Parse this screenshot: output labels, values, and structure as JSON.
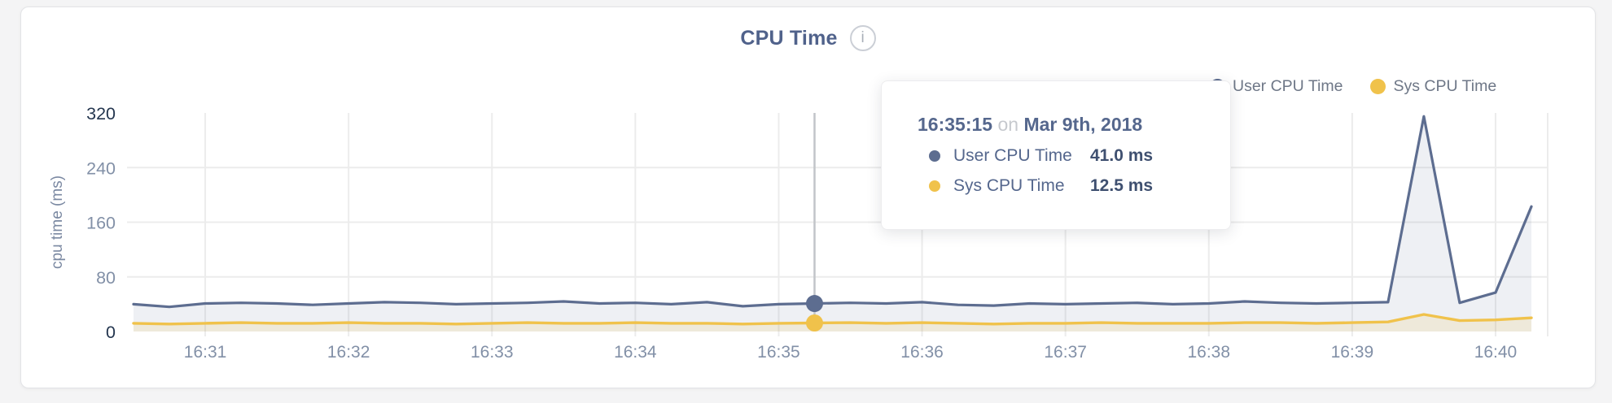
{
  "header": {
    "title": "CPU Time",
    "info_glyph": "i"
  },
  "legend": {
    "items": [
      {
        "label": "User CPU Time",
        "color": "#5d6d90"
      },
      {
        "label": "Sys CPU Time",
        "color": "#f0c24b"
      }
    ]
  },
  "tooltip": {
    "time": "16:35:15",
    "connector": "on",
    "date": "Mar 9th, 2018",
    "rows": [
      {
        "label": "User CPU Time",
        "value": "41.0 ms",
        "color": "#5d6d90"
      },
      {
        "label": "Sys CPU Time",
        "value": "12.5 ms",
        "color": "#f0c24b"
      }
    ]
  },
  "chart_data": {
    "type": "line",
    "title": "CPU Time",
    "xlabel": "",
    "ylabel": "cpu time (ms)",
    "ylim": [
      0,
      320
    ],
    "yticks": [
      0,
      80,
      160,
      240,
      320
    ],
    "xticks": [
      "16:31",
      "16:32",
      "16:33",
      "16:34",
      "16:35",
      "16:36",
      "16:37",
      "16:38",
      "16:39",
      "16:40"
    ],
    "grid": true,
    "legend_position": "top-right",
    "x": [
      "16:30:30",
      "16:30:45",
      "16:31:00",
      "16:31:15",
      "16:31:30",
      "16:31:45",
      "16:32:00",
      "16:32:15",
      "16:32:30",
      "16:32:45",
      "16:33:00",
      "16:33:15",
      "16:33:30",
      "16:33:45",
      "16:34:00",
      "16:34:15",
      "16:34:30",
      "16:34:45",
      "16:35:00",
      "16:35:15",
      "16:35:30",
      "16:35:45",
      "16:36:00",
      "16:36:15",
      "16:36:30",
      "16:36:45",
      "16:37:00",
      "16:37:15",
      "16:37:30",
      "16:37:45",
      "16:38:00",
      "16:38:15",
      "16:38:30",
      "16:38:45",
      "16:39:00",
      "16:39:15",
      "16:39:30",
      "16:39:45",
      "16:40:00",
      "16:40:15"
    ],
    "series": [
      {
        "name": "User CPU Time",
        "color": "#5d6d90",
        "fill": "rgba(93,109,144,0.10)",
        "unit": "ms",
        "values": [
          40,
          36,
          41,
          42,
          41,
          39,
          41,
          43,
          42,
          40,
          41,
          42,
          44,
          41,
          42,
          40,
          43,
          37,
          40,
          41,
          42,
          41,
          43,
          39,
          38,
          41,
          40,
          41,
          42,
          40,
          41,
          44,
          42,
          41,
          42,
          43,
          315,
          42,
          57,
          183
        ]
      },
      {
        "name": "Sys CPU Time",
        "color": "#f0c24b",
        "fill": "rgba(240,194,75,0.15)",
        "unit": "ms",
        "values": [
          12,
          11,
          12,
          13,
          12,
          12,
          13,
          12,
          12,
          11,
          12,
          13,
          12,
          12,
          13,
          12,
          12,
          11,
          12,
          12.5,
          13,
          12,
          13,
          12,
          11,
          12,
          12,
          13,
          12,
          12,
          12,
          13,
          13,
          12,
          13,
          14,
          25,
          16,
          17,
          20
        ]
      }
    ],
    "hover": {
      "time": "16:35:15",
      "date": "Mar 9th, 2018",
      "user_value_ms": 41.0,
      "sys_value_ms": 12.5
    },
    "theme": {
      "grid_color": "#ececec",
      "hover_line_color": "#c2c5c9",
      "axis_label_color": "#8290a7",
      "axis_label_strong_color": "#24364f",
      "axis_title_color": "#7b89a2",
      "title_color": "#50628b",
      "legend_text_color": "#6e7787",
      "card_background": "#ffffff",
      "page_background": "#f4f4f5"
    }
  }
}
